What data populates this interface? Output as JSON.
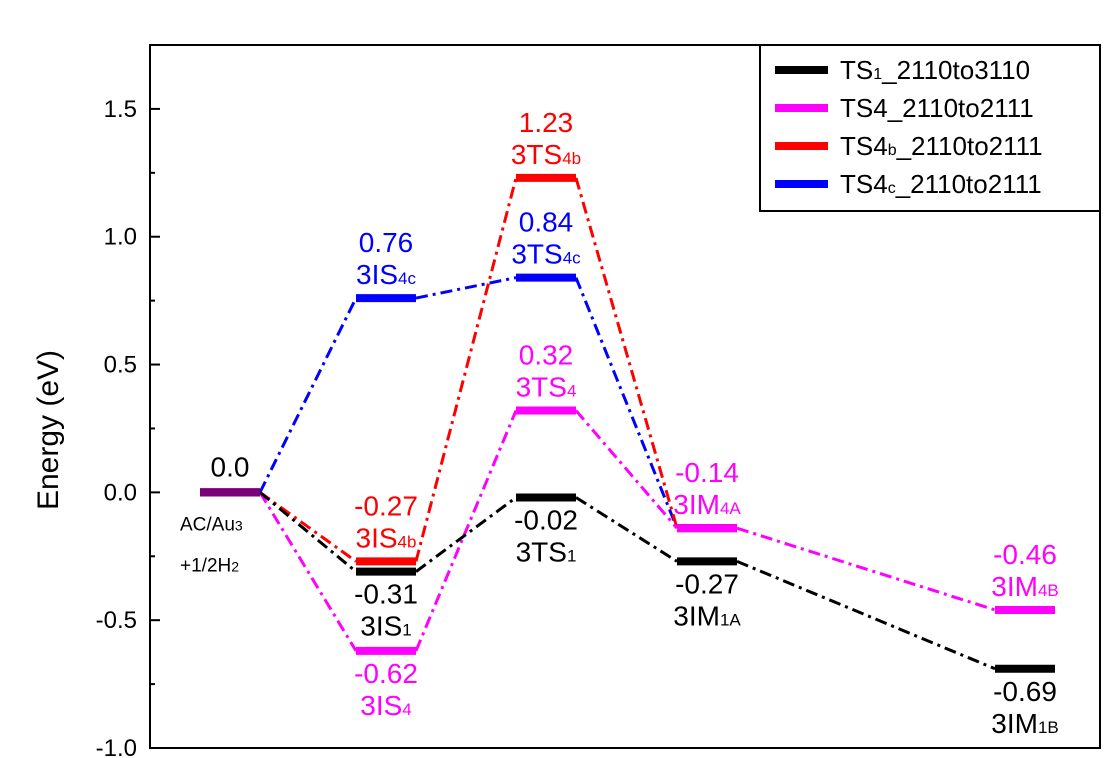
{
  "chart_data": {
    "type": "line",
    "ylabel": "Energy (eV)",
    "ylim": [
      -1.0,
      1.75
    ],
    "yticks": [
      "-1.0",
      "-0.5",
      "0.0",
      "0.5",
      "1.0",
      "1.5"
    ],
    "ytick_values": [
      -1.0,
      -0.5,
      0.0,
      0.5,
      1.0,
      1.5
    ],
    "legend_position": "top-right",
    "series": [
      {
        "name": "TS₁_2110to3110",
        "color": "#000000",
        "points": [
          {
            "x": 1,
            "y": 0.0
          },
          {
            "x": 2,
            "y": -0.31,
            "val": "-0.31",
            "name": "3IS",
            "sub": "1"
          },
          {
            "x": 3,
            "y": -0.02,
            "val": "-0.02",
            "name": "3TS",
            "sub": "1"
          },
          {
            "x": 4,
            "y": -0.27,
            "val": "-0.27",
            "name": "3IM",
            "sub": "1A"
          },
          {
            "x": 6,
            "y": -0.69,
            "val": "-0.69",
            "name": "3IM",
            "sub": "1B"
          }
        ]
      },
      {
        "name": "TS4_2110to2111",
        "color": "#ff00ff",
        "points": [
          {
            "x": 1,
            "y": 0.0
          },
          {
            "x": 2,
            "y": -0.62,
            "val": "-0.62",
            "name": "3IS",
            "sub": "4"
          },
          {
            "x": 3,
            "y": 0.32,
            "val": "0.32",
            "name": "3TS",
            "sub": "4"
          },
          {
            "x": 4,
            "y": -0.14,
            "val": "-0.14",
            "name": "3IM",
            "sub": "4A"
          },
          {
            "x": 6,
            "y": -0.46,
            "val": "-0.46",
            "name": "3IM",
            "sub": "4B"
          }
        ]
      },
      {
        "name": "TS4b_2110to2111",
        "color": "#ff0000",
        "points": [
          {
            "x": 1,
            "y": 0.0
          },
          {
            "x": 2,
            "y": -0.27,
            "val": "-0.27",
            "name": "3IS",
            "sub": "4b"
          },
          {
            "x": 3,
            "y": 1.23,
            "val": "1.23",
            "name": "3TS",
            "sub": "4b"
          },
          {
            "x": 4,
            "y": -0.14
          }
        ]
      },
      {
        "name": "TS4c_2110to2111",
        "color": "#0000ff",
        "points": [
          {
            "x": 1,
            "y": 0.0
          },
          {
            "x": 2,
            "y": 0.76,
            "val": "0.76",
            "name": "3IS",
            "sub": "4c"
          },
          {
            "x": 3,
            "y": 0.84,
            "val": "0.84",
            "name": "3TS",
            "sub": "4c"
          },
          {
            "x": 4,
            "y": -0.14
          }
        ]
      }
    ],
    "legend": [
      {
        "main": "TS",
        "sub": "1",
        "rest": "_2110to3110",
        "color": "#000000"
      },
      {
        "main": "TS4",
        "sub": "",
        "rest": "_2110to2111",
        "color": "#ff00ff"
      },
      {
        "main": "TS4",
        "sub": "b",
        "rest": "_2110to2111",
        "color": "#ff0000"
      },
      {
        "main": "TS4",
        "sub": "c",
        "rest": "_2110to2111",
        "color": "#0000ff"
      }
    ],
    "start_label": {
      "value": "0.0",
      "line1_main": "AC/Au",
      "line1_sub": "3",
      "line2_main": "+1/2H",
      "line2_sub": "2"
    }
  }
}
